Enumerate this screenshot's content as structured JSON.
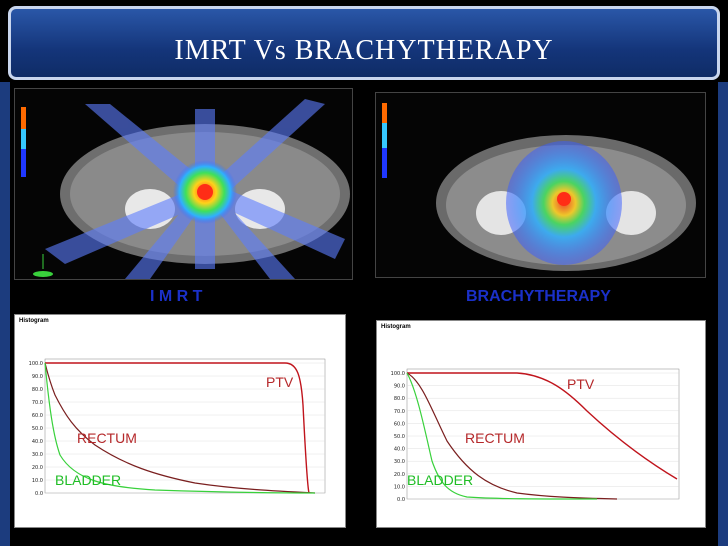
{
  "slide": {
    "title": "IMRT  Vs  BRACHYTHERAPY",
    "imrt_label": "I M R T",
    "brachy_label": "BRACHYTHERAPY",
    "label_color": "#1a30c8"
  },
  "left_dvh": {
    "header": "Histogram",
    "curves": {
      "ptv": "PTV",
      "rectum": "RECTUM",
      "bladder": "BLADDER"
    },
    "y_ticks": [
      "100.0",
      "90.0",
      "80.0",
      "70.0",
      "60.0",
      "50.0",
      "40.0",
      "30.0",
      "20.0",
      "10.0",
      "0.0"
    ]
  },
  "right_dvh": {
    "header": "Histogram",
    "curves": {
      "ptv": "PTV",
      "rectum": "RECTUM",
      "bladder": "BLADDER"
    },
    "y_ticks": [
      "100.0",
      "90.0",
      "80.0",
      "70.0",
      "60.0",
      "50.0",
      "40.0",
      "30.0",
      "20.0",
      "10.0",
      "0.0"
    ]
  },
  "colors": {
    "ptv": "#c0141c",
    "rectum": "#7a1f1f",
    "bladder": "#39d13c",
    "label_text": "#b5282a",
    "bladder_text": "#1fbd25"
  }
}
